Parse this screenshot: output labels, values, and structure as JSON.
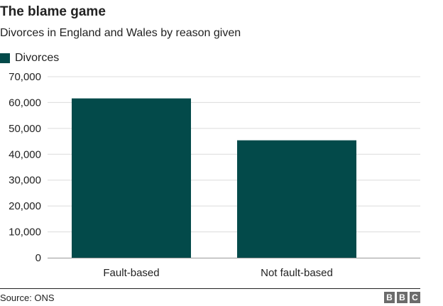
{
  "title": "The blame game",
  "subtitle": "Divorces in England and Wales by reason given",
  "legend": {
    "label": "Divorces",
    "color": "#034a4a"
  },
  "source": "Source: ONS",
  "brand": {
    "letters": [
      "B",
      "B",
      "C"
    ]
  },
  "chart_data": {
    "type": "bar",
    "title": "The blame game",
    "subtitle": "Divorces in England and Wales by reason given",
    "categories": [
      "Fault-based",
      "Not fault-based"
    ],
    "series": [
      {
        "name": "Divorces",
        "color": "#034a4a",
        "values": [
          61600,
          45400
        ]
      }
    ],
    "ylim": [
      0,
      70000
    ],
    "yticks": [
      0,
      10000,
      20000,
      30000,
      40000,
      50000,
      60000,
      70000
    ],
    "ytick_labels": [
      "0",
      "10,000",
      "20,000",
      "30,000",
      "40,000",
      "50,000",
      "60,000",
      "70,000"
    ],
    "grid": true,
    "legend_position": "top-left"
  }
}
